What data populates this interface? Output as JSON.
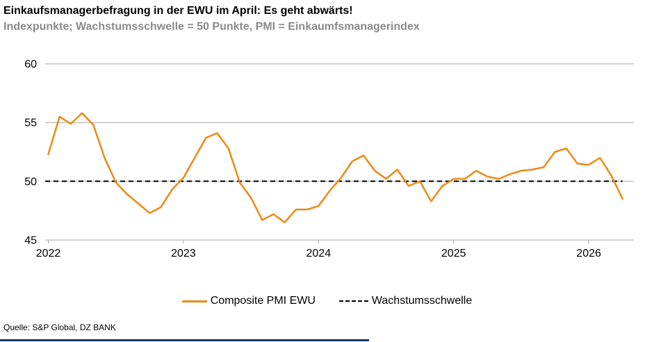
{
  "header": {
    "title": "Einkaufsmanagerbefragung in der EWU im April: Es geht abwärts!",
    "subtitle": "Indexpunkte; Wachstumsschwelle = 50 Punkte, PMI = Einkaumfsmanagerindex"
  },
  "chart_data": {
    "type": "line",
    "x": [
      "2022-01",
      "2022-02",
      "2022-03",
      "2022-04",
      "2022-05",
      "2022-06",
      "2022-07",
      "2022-08",
      "2022-09",
      "2022-10",
      "2022-11",
      "2022-12",
      "2023-01",
      "2023-02",
      "2023-03",
      "2023-04",
      "2023-05",
      "2023-06",
      "2023-07",
      "2023-08",
      "2023-09",
      "2023-10",
      "2023-11",
      "2023-12",
      "2024-01",
      "2024-02",
      "2024-03",
      "2024-04",
      "2024-05",
      "2024-06",
      "2024-07",
      "2024-08",
      "2024-09",
      "2024-10",
      "2024-11",
      "2024-12",
      "2025-01",
      "2025-02",
      "2025-03",
      "2025-04",
      "2025-05",
      "2025-06",
      "2025-07",
      "2025-08",
      "2025-09",
      "2025-10",
      "2025-11",
      "2025-12",
      "2026-01",
      "2026-02",
      "2026-03",
      "2026-04"
    ],
    "series": [
      {
        "name": "Composite PMI EWU",
        "values": [
          52.3,
          55.5,
          54.9,
          55.8,
          54.8,
          52.0,
          49.9,
          48.9,
          48.1,
          47.3,
          47.8,
          49.3,
          50.3,
          52.0,
          53.7,
          54.1,
          52.8,
          49.9,
          48.6,
          46.7,
          47.2,
          46.5,
          47.6,
          47.6,
          47.9,
          49.2,
          50.3,
          51.7,
          52.2,
          50.9,
          50.2,
          51.0,
          49.6,
          50.0,
          48.3,
          49.6,
          50.2,
          50.2,
          50.9,
          50.4,
          50.2,
          50.6,
          50.9,
          51.0,
          51.2,
          52.5,
          52.8,
          51.5,
          51.4,
          52.0,
          50.5,
          48.5
        ]
      }
    ],
    "threshold": {
      "label": "Wachstumsschwelle",
      "value": 50
    },
    "title": "Einkaufsmanagerbefragung in der EWU im April: Es geht abwärts!",
    "xlabel": "",
    "ylabel": "Indexpunkte",
    "ylim": [
      45,
      60
    ],
    "y_ticks": [
      60,
      55,
      50,
      45
    ],
    "x_tick_labels": [
      "2022",
      "2023",
      "2024",
      "2025",
      "2026"
    ],
    "grid": true,
    "legend_position": "bottom",
    "colors": {
      "line": "#ED8912",
      "grid": "#A6A6A6",
      "threshold": "#000000",
      "accent_bar": "#17375D"
    }
  },
  "legend": {
    "series_label": "Composite PMI EWU",
    "threshold_label": "Wachstumsschwelle"
  },
  "footer": {
    "source": "Quelle: S&P Global, DZ BANK"
  }
}
